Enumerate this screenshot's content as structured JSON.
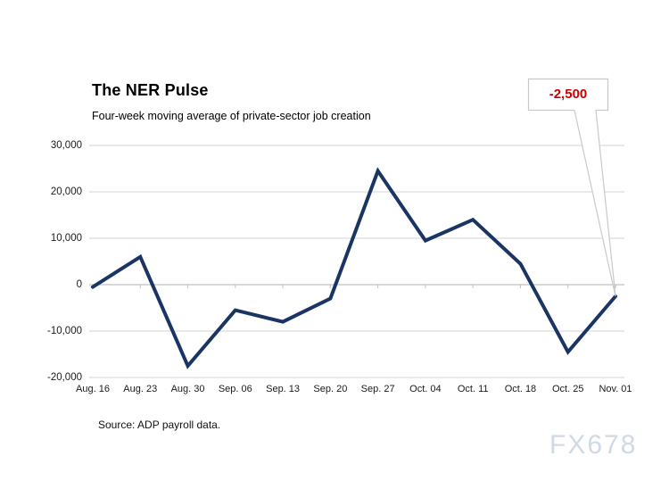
{
  "colors": {
    "line": "#1a3564",
    "annotation_text": "#cc0000",
    "gridline": "#dcdcdc",
    "axis": "#c0c0c0",
    "callout_border": "#c9c9c9",
    "watermark": "#d0d9e4",
    "background": "#ffffff"
  },
  "source_note": "Source: ADP payroll data.",
  "watermark_text": "FX678",
  "chart_data": {
    "type": "line",
    "title": "The NER Pulse",
    "subtitle": "Four-week moving average of private-sector job creation",
    "categories": [
      "Aug. 16",
      "Aug. 23",
      "Aug. 30",
      "Sep. 06",
      "Sep. 13",
      "Sep. 20",
      "Sep. 27",
      "Oct. 04",
      "Oct. 11",
      "Oct. 18",
      "Oct. 25",
      "Nov. 01"
    ],
    "values": [
      -500,
      6000,
      -17500,
      -5500,
      -8000,
      -3000,
      24500,
      9500,
      14000,
      4500,
      -14500,
      -2500
    ],
    "ylim": [
      -20000,
      30000
    ],
    "yticks": [
      {
        "value": 30000,
        "label": "30,000"
      },
      {
        "value": 20000,
        "label": "20,000"
      },
      {
        "value": 10000,
        "label": "10,000"
      },
      {
        "value": 0,
        "label": "0"
      },
      {
        "value": -10000,
        "label": "-10,000"
      },
      {
        "value": -20000,
        "label": "-20,000"
      }
    ],
    "grid": true,
    "legend": false,
    "xlabel": "",
    "ylabel": "",
    "annotation": {
      "text": "-2,500",
      "category": "Nov. 01",
      "value": -2500
    }
  }
}
